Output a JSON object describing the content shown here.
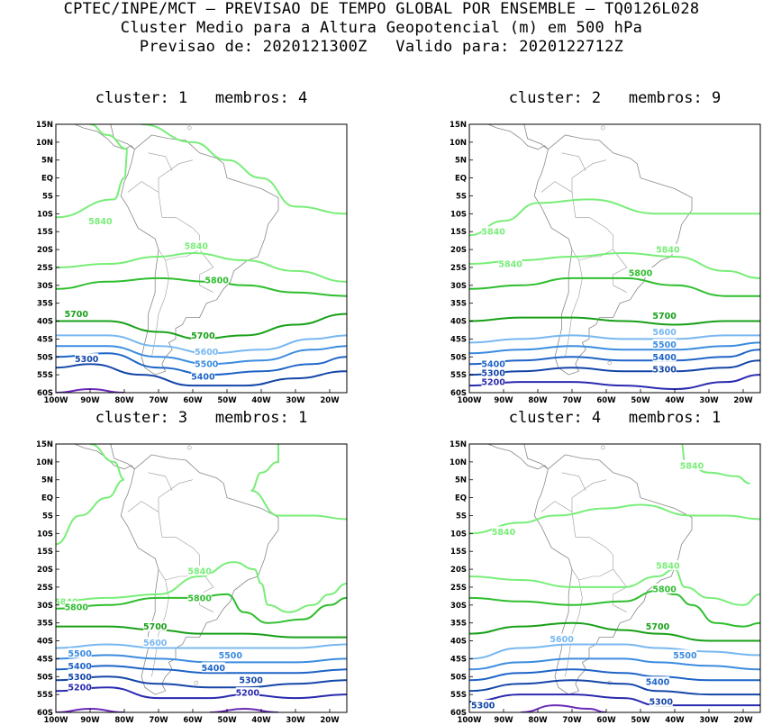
{
  "header": {
    "line1": "CPTEC/INPE/MCT – PREVISAO DE TEMPO GLOBAL POR ENSEMBLE – TQ0126L028",
    "line2": "Cluster Medio para a Altura Geopotencial (m) em 500 hPa",
    "line3": "Previsao de: 2020121300Z   Valido para: 2020122712Z"
  },
  "axes": {
    "lat_labels": [
      "15N",
      "10N",
      "5N",
      "EQ",
      "5S",
      "10S",
      "15S",
      "20S",
      "25S",
      "30S",
      "35S",
      "40S",
      "45S",
      "50S",
      "55S",
      "60S"
    ],
    "lon_labels": [
      "100W",
      "90W",
      "80W",
      "70W",
      "60W",
      "50W",
      "40W",
      "30W",
      "20W"
    ]
  },
  "contour_colors": {
    "5840": "#78ee78",
    "5800": "#2ebe2e",
    "5700": "#18a018",
    "5600": "#78b8f0",
    "5500": "#3c8ce0",
    "5400": "#1e64c8",
    "5300": "#1446a8",
    "5200": "#2a2ab0",
    "5100": "#6a2ab8"
  },
  "panels": [
    {
      "title": "cluster: 1   membros: 4",
      "contours": [
        {
          "level": "5840",
          "y": [
            null,
            null,
            null,
            null,
            null
          ]
        },
        {
          "level": "5840",
          "label": "5840",
          "y": [
            25,
            27,
            20,
            26,
            33
          ]
        },
        {
          "level": "5800",
          "label": "5800",
          "y": [
            31,
            29,
            29,
            31,
            33
          ]
        },
        {
          "level": "5700",
          "label": "5700",
          "y": [
            40,
            44,
            47,
            43,
            40
          ]
        },
        {
          "level": "5600",
          "label": "5600",
          "y": [
            45,
            49,
            51,
            49,
            45
          ]
        },
        {
          "level": "5500",
          "label": "5500",
          "y": [
            48,
            52,
            54,
            52,
            48
          ]
        },
        {
          "level": "5400",
          "label": "5400",
          "y": [
            51,
            55,
            57,
            55,
            51
          ]
        },
        {
          "level": "5300",
          "label": "5300",
          "y": [
            54,
            57,
            59,
            57,
            54
          ]
        }
      ],
      "labels": [
        {
          "text": "5840",
          "color": "5840"
        },
        {
          "text": "5840",
          "color": "5840"
        },
        {
          "text": "5800",
          "color": "5800"
        },
        {
          "text": "5700",
          "color": "5700"
        },
        {
          "text": "5700",
          "color": "5700"
        },
        {
          "text": "5600",
          "color": "5600"
        },
        {
          "text": "5500",
          "color": "5500"
        },
        {
          "text": "5400",
          "color": "5400"
        },
        {
          "text": "5300",
          "color": "5300"
        }
      ]
    },
    {
      "title": "cluster: 2   membros: 9",
      "labels": [
        {
          "text": "5840",
          "color": "5840"
        },
        {
          "text": "5840",
          "color": "5840"
        },
        {
          "text": "5840",
          "color": "5840"
        },
        {
          "text": "5800",
          "color": "5800"
        },
        {
          "text": "5700",
          "color": "5700"
        },
        {
          "text": "5600",
          "color": "5600"
        },
        {
          "text": "5500",
          "color": "5500"
        },
        {
          "text": "5400",
          "color": "5400"
        },
        {
          "text": "5400",
          "color": "5400"
        },
        {
          "text": "5300",
          "color": "5300"
        },
        {
          "text": "5300",
          "color": "5300"
        },
        {
          "text": "5200",
          "color": "5200"
        }
      ]
    },
    {
      "title": "cluster: 3   membros: 1",
      "labels": [
        {
          "text": "5840",
          "color": "5840"
        },
        {
          "text": "5840",
          "color": "5840"
        },
        {
          "text": "5800",
          "color": "5800"
        },
        {
          "text": "5800",
          "color": "5800"
        },
        {
          "text": "5700",
          "color": "5700"
        },
        {
          "text": "5600",
          "color": "5600"
        },
        {
          "text": "5500",
          "color": "5500"
        },
        {
          "text": "5500",
          "color": "5500"
        },
        {
          "text": "5400",
          "color": "5400"
        },
        {
          "text": "5400",
          "color": "5400"
        },
        {
          "text": "5300",
          "color": "5300"
        },
        {
          "text": "5300",
          "color": "5300"
        },
        {
          "text": "5200",
          "color": "5200"
        },
        {
          "text": "5200",
          "color": "5200"
        }
      ]
    },
    {
      "title": "cluster: 4   membros: 1",
      "labels": [
        {
          "text": "5840",
          "color": "5840"
        },
        {
          "text": "5840",
          "color": "5840"
        },
        {
          "text": "5840",
          "color": "5840"
        },
        {
          "text": "5800",
          "color": "5800"
        },
        {
          "text": "5700",
          "color": "5700"
        },
        {
          "text": "5600",
          "color": "5600"
        },
        {
          "text": "5500",
          "color": "5500"
        },
        {
          "text": "5400",
          "color": "5400"
        },
        {
          "text": "5300",
          "color": "5300"
        },
        {
          "text": "5300",
          "color": "5300"
        }
      ]
    }
  ]
}
